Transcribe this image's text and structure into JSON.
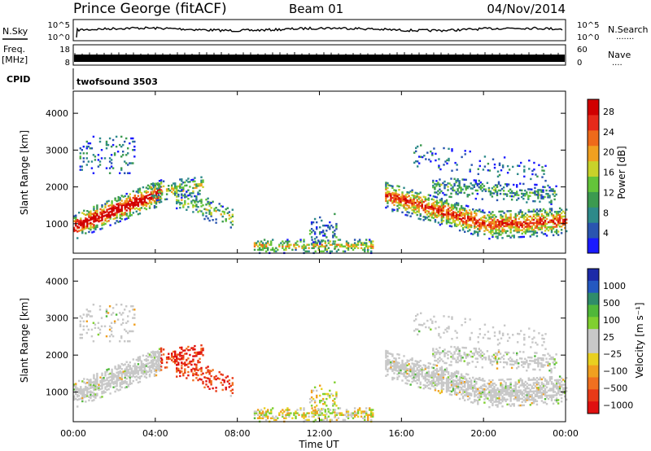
{
  "header": {
    "station": "Prince George (fitACF)",
    "beam": "Beam 01",
    "date": "04/Nov/2014"
  },
  "nsky_panel": {
    "left_label": "N.Sky",
    "left_ticks": [
      "10^5",
      "10^0"
    ],
    "right_label": "N.Search",
    "right_ticks": [
      "10^5",
      "10^0"
    ],
    "right_dots": "......."
  },
  "freq_panel": {
    "left_label_1": "Freq.",
    "left_label_2": "[MHz]",
    "left_ticks": [
      "18",
      "8"
    ],
    "right_label": "Nave",
    "right_ticks": [
      "60",
      "0"
    ],
    "right_dots": "...."
  },
  "cpid_panel": {
    "label": "CPID",
    "value": "twofsound 3503"
  },
  "x_axis": {
    "label": "Time UT",
    "ticks": [
      "00:00",
      "04:00",
      "08:00",
      "12:00",
      "16:00",
      "20:00",
      "00:00"
    ]
  },
  "chart_data": [
    {
      "type": "heatmap",
      "name": "power",
      "ylabel": "Slant Range [km]",
      "yticks": [
        "1000",
        "2000",
        "3000",
        "4000"
      ],
      "ylim": [
        200,
        4600
      ],
      "xlim_hours": [
        0,
        24
      ],
      "colorbar": {
        "label": "Power [dB]",
        "ticks": [
          "4",
          "8",
          "12",
          "16",
          "20",
          "24",
          "28"
        ],
        "colors": [
          "#1a1aff",
          "#2a55b0",
          "#2e8a8a",
          "#3c9a50",
          "#64c43a",
          "#c8d22a",
          "#f0a020",
          "#ee6a1a",
          "#e62a1a",
          "#d00000"
        ]
      }
    },
    {
      "type": "heatmap",
      "name": "velocity",
      "ylabel": "Slant Range [km]",
      "yticks": [
        "1000",
        "2000",
        "3000",
        "4000"
      ],
      "ylim": [
        200,
        4600
      ],
      "xlim_hours": [
        0,
        24
      ],
      "colorbar": {
        "label": "Velocity [m s⁻¹]",
        "ticks": [
          "1000",
          "500",
          "100",
          "25",
          "−25",
          "−100",
          "−500",
          "−1000"
        ],
        "colors": [
          "#1c2aa8",
          "#2458c0",
          "#2f8c6a",
          "#50b83a",
          "#80d030",
          "#c8c8c8",
          "#c8c8c8",
          "#e8d020",
          "#f0a020",
          "#f07020",
          "#e83a18",
          "#e01010"
        ]
      }
    }
  ]
}
